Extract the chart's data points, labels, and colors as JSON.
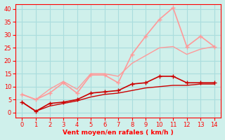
{
  "xlabel": "Vent moyen/en rafales ( km/h )",
  "background_color": "#cff0eb",
  "grid_color": "#aadddd",
  "xlim": [
    -0.5,
    14.5
  ],
  "ylim": [
    -2,
    42
  ],
  "x_ticks": [
    0,
    1,
    2,
    3,
    4,
    5,
    6,
    7,
    8,
    9,
    10,
    11,
    12,
    13,
    14
  ],
  "y_ticks": [
    0,
    5,
    10,
    15,
    20,
    25,
    30,
    35,
    40
  ],
  "series": [
    {
      "label": "dark_line_smooth",
      "x": [
        0,
        1,
        2,
        3,
        4,
        5,
        6,
        7,
        8,
        9,
        10,
        11,
        12,
        13,
        14
      ],
      "y": [
        4.0,
        0.5,
        2.5,
        3.5,
        4.5,
        6.0,
        7.0,
        7.5,
        8.5,
        9.5,
        10.0,
        10.5,
        10.5,
        11.0,
        11.0
      ],
      "color": "#cc0000",
      "linewidth": 1.0,
      "marker": null,
      "markersize": 0,
      "alpha": 1.0
    },
    {
      "label": "dark_line_markers",
      "x": [
        0,
        1,
        2,
        3,
        4,
        5,
        6,
        7,
        8,
        9,
        10,
        11,
        12,
        13,
        14
      ],
      "y": [
        4.0,
        0.5,
        3.5,
        4.0,
        5.0,
        7.5,
        8.0,
        8.5,
        11.0,
        11.5,
        14.0,
        14.0,
        11.5,
        11.5,
        11.5
      ],
      "color": "#cc0000",
      "linewidth": 1.2,
      "marker": "+",
      "markersize": 4,
      "alpha": 1.0
    },
    {
      "label": "light_line_smooth",
      "x": [
        0,
        1,
        2,
        3,
        4,
        5,
        6,
        7,
        8,
        9,
        10,
        11,
        12,
        13,
        14
      ],
      "y": [
        7.0,
        5.0,
        9.0,
        12.0,
        9.0,
        15.0,
        15.0,
        14.0,
        19.0,
        22.0,
        25.0,
        25.5,
        22.5,
        24.5,
        25.5
      ],
      "color": "#ff9999",
      "linewidth": 1.0,
      "marker": null,
      "markersize": 0,
      "alpha": 1.0
    },
    {
      "label": "light_line_markers",
      "x": [
        0,
        1,
        2,
        3,
        4,
        5,
        6,
        7,
        8,
        9,
        10,
        11,
        12,
        13,
        14
      ],
      "y": [
        7.0,
        5.0,
        7.5,
        11.5,
        7.5,
        14.5,
        14.5,
        11.5,
        22.5,
        29.5,
        36.0,
        40.5,
        25.5,
        29.5,
        25.5
      ],
      "color": "#ff9999",
      "linewidth": 1.2,
      "marker": "+",
      "markersize": 4,
      "alpha": 1.0
    }
  ]
}
